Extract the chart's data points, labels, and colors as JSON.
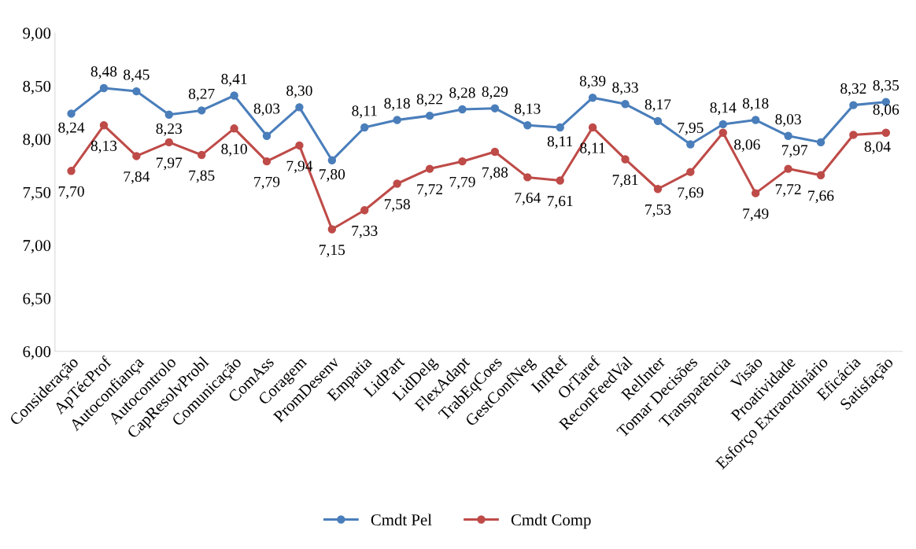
{
  "chart_data": {
    "type": "line",
    "categories": [
      "Consideração",
      "ApTécProf",
      "Autoconfiança",
      "Autocontrolo",
      "CapResolvProbl",
      "Comunicação",
      "ComAss",
      "Coragem",
      "PromDesenv",
      "Empatia",
      "LidPart",
      "LidDelg",
      "FlexAdapt",
      "TrabEqCoes",
      "GestConfNeg",
      "InfRef",
      "OrTaref",
      "ReconFeedVal",
      "RelInter",
      "Tomar Decisões",
      "Transparência",
      "Visão",
      "Proatividade",
      "Esforço Extraordinário",
      "Eficácia",
      "Satisfação"
    ],
    "series": [
      {
        "name": "Cmdt Pel",
        "color": "#4a7ebb",
        "values": [
          8.24,
          8.48,
          8.45,
          8.23,
          8.27,
          8.41,
          8.03,
          8.3,
          7.8,
          8.11,
          8.18,
          8.22,
          8.28,
          8.29,
          8.13,
          8.11,
          8.39,
          8.33,
          8.17,
          7.95,
          8.14,
          8.18,
          8.03,
          7.97,
          8.32,
          8.35
        ],
        "value_labels": [
          "8,24",
          "8,48",
          "8,45",
          "8,23",
          "8,27",
          "8,41",
          "8,03",
          "8,30",
          "7,80",
          "8,11",
          "8,18",
          "8,22",
          "8,28",
          "8,29",
          "8,13",
          "8,11",
          "8,39",
          "8,33",
          "8,17",
          "7,95",
          "8,14",
          "8,18",
          "8,03",
          "7,97",
          "8,32",
          "8,35"
        ]
      },
      {
        "name": "Cmdt Comp",
        "color": "#be4b48",
        "values": [
          7.7,
          8.13,
          7.84,
          7.97,
          7.85,
          8.1,
          7.79,
          7.94,
          7.15,
          7.33,
          7.58,
          7.72,
          7.79,
          7.88,
          7.64,
          7.61,
          8.11,
          7.81,
          7.53,
          7.69,
          8.06,
          7.49,
          7.72,
          7.66,
          8.04,
          8.06
        ],
        "value_labels": [
          "7,70",
          "8,13",
          "7,84",
          "7,97",
          "7,85",
          "8,10",
          "7,79",
          "7,94",
          "7,15",
          "7,33",
          "7,58",
          "7,72",
          "7,79",
          "7,88",
          "7,64",
          "7,61",
          "8,11",
          "7,81",
          "7,53",
          "7,69",
          "8,06",
          "7,49",
          "7,72",
          "7,66",
          "8,04",
          "8,06"
        ]
      }
    ],
    "ylim": [
      6.0,
      9.0
    ],
    "yticks": [
      {
        "value": 6.0,
        "label": "6,00"
      },
      {
        "value": 6.5,
        "label": "6,50"
      },
      {
        "value": 7.0,
        "label": "7,00"
      },
      {
        "value": 7.5,
        "label": "7,50"
      },
      {
        "value": 8.0,
        "label": "8,00"
      },
      {
        "value": 8.5,
        "label": "8,50"
      },
      {
        "value": 9.0,
        "label": "9,00"
      }
    ],
    "marker": "circle",
    "line_style": "solid",
    "legend": "bottom"
  }
}
